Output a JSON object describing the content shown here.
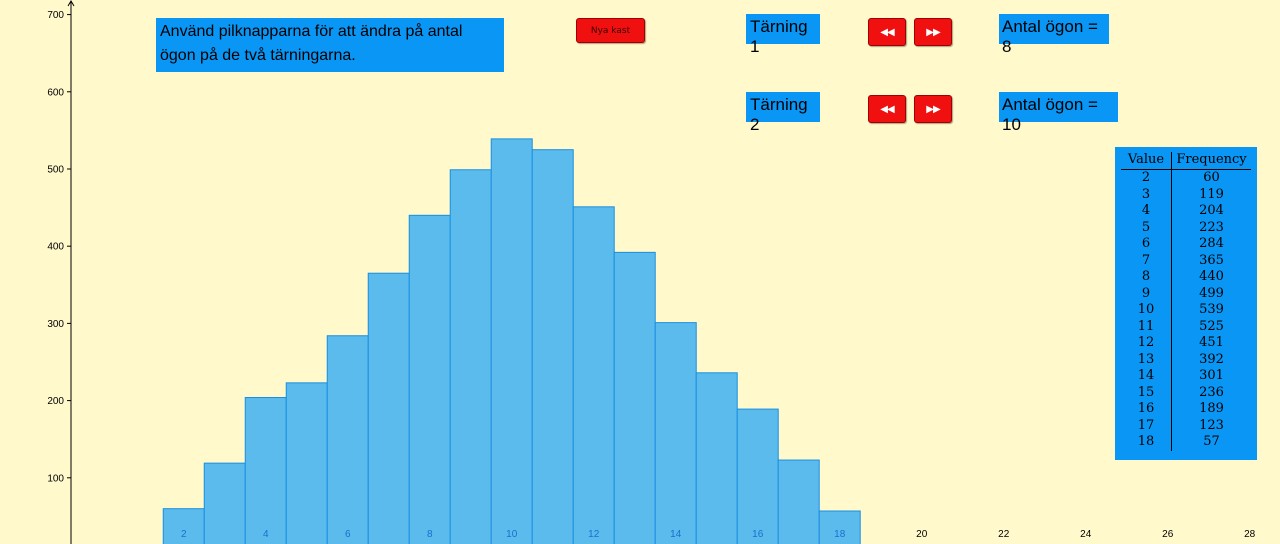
{
  "instructions": "Använd pilknapparna för att ändra på antal ögon på de två tärningarna.",
  "new_roll_button": "Nya kast",
  "die1": {
    "label": "Tärning 1",
    "value_text": "Antal ögon = 8"
  },
  "die2": {
    "label": "Tärning 2",
    "value_text": "Antal ögon = 10"
  },
  "buttons": {
    "decrease_icon": "◀◀",
    "increase_icon": "▶▶"
  },
  "colors": {
    "bar_fill": "#5bbbed",
    "bar_stroke": "#1a8fe0",
    "panel": "#0a96f5",
    "button": "#f01010",
    "background": "#fff9cc"
  },
  "table": {
    "headers": [
      "Value",
      "Frequency"
    ],
    "rows": [
      [
        "2",
        "60"
      ],
      [
        "3",
        "119"
      ],
      [
        "4",
        "204"
      ],
      [
        "5",
        "223"
      ],
      [
        "6",
        "284"
      ],
      [
        "7",
        "365"
      ],
      [
        "8",
        "440"
      ],
      [
        "9",
        "499"
      ],
      [
        "10",
        "539"
      ],
      [
        "11",
        "525"
      ],
      [
        "12",
        "451"
      ],
      [
        "13",
        "392"
      ],
      [
        "14",
        "301"
      ],
      [
        "15",
        "236"
      ],
      [
        "16",
        "189"
      ],
      [
        "17",
        "123"
      ],
      [
        "18",
        "57"
      ]
    ]
  },
  "chart_data": {
    "type": "bar",
    "categories": [
      2,
      3,
      4,
      5,
      6,
      7,
      8,
      9,
      10,
      11,
      12,
      13,
      14,
      15,
      16,
      17,
      18
    ],
    "values": [
      60,
      119,
      204,
      223,
      284,
      365,
      440,
      499,
      539,
      525,
      451,
      392,
      301,
      236,
      189,
      123,
      57
    ],
    "x_ticks": [
      2,
      4,
      6,
      8,
      10,
      12,
      14,
      16,
      18,
      20,
      22,
      24,
      26,
      28
    ],
    "y_ticks": [
      100,
      200,
      300,
      400,
      500,
      600,
      700
    ],
    "xlim": [
      -0.75,
      28.3
    ],
    "ylim": [
      0,
      715
    ],
    "grid": false
  }
}
